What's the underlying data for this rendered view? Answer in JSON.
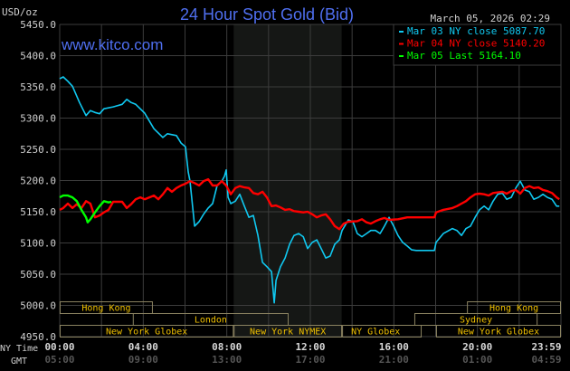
{
  "chart_data": {
    "type": "line",
    "title": "24 Hour Spot Gold (Bid)",
    "watermark": "www.kitco.com",
    "ylabel": "USD/oz",
    "timestamp": "March 05, 2026 02:29",
    "ylim": [
      4950,
      5450
    ],
    "yticks": [
      "5450.0",
      "5400.0",
      "5350.0",
      "5300.0",
      "5250.0",
      "5200.0",
      "5150.0",
      "5100.0",
      "5050.0",
      "5000.0",
      "4950.0"
    ],
    "ytick_values": [
      5450,
      5400,
      5350,
      5300,
      5250,
      5200,
      5150,
      5100,
      5050,
      5000,
      4950
    ],
    "xlim_hours": [
      0,
      24
    ],
    "xtick_hours": [
      0,
      4,
      8,
      12,
      16,
      20,
      23.98
    ],
    "xrow_labels": {
      "ny": "NY Time",
      "gmt": "GMT"
    },
    "xticks_ny": [
      "00:00",
      "04:00",
      "08:00",
      "12:00",
      "16:00",
      "20:00",
      "23:59"
    ],
    "xticks_gmt": [
      "05:00",
      "09:00",
      "13:00",
      "17:00",
      "21:00",
      "01:00",
      "04:59"
    ],
    "grid": true,
    "legend_placement": "top-right",
    "shaded_hours": [
      8.33,
      13.5
    ],
    "series": [
      {
        "name": "Mar 03 NY close 5087.70",
        "color": "#10c8f0",
        "points": [
          [
            0,
            5363
          ],
          [
            0.17,
            5366
          ],
          [
            0.39,
            5359
          ],
          [
            0.61,
            5351
          ],
          [
            0.95,
            5325
          ],
          [
            1.26,
            5304
          ],
          [
            1.47,
            5312
          ],
          [
            1.69,
            5309
          ],
          [
            1.91,
            5307
          ],
          [
            2.12,
            5315
          ],
          [
            2.56,
            5318
          ],
          [
            2.99,
            5322
          ],
          [
            3.21,
            5330
          ],
          [
            3.42,
            5325
          ],
          [
            3.64,
            5322
          ],
          [
            4.07,
            5308
          ],
          [
            4.51,
            5283
          ],
          [
            4.94,
            5269
          ],
          [
            5.16,
            5275
          ],
          [
            5.59,
            5272
          ],
          [
            5.81,
            5260
          ],
          [
            6.02,
            5254
          ],
          [
            6.15,
            5214
          ],
          [
            6.24,
            5199
          ],
          [
            6.46,
            5127
          ],
          [
            6.67,
            5134
          ],
          [
            6.89,
            5146
          ],
          [
            7.11,
            5156
          ],
          [
            7.32,
            5163
          ],
          [
            7.54,
            5192
          ],
          [
            7.76,
            5199
          ],
          [
            7.89,
            5207
          ],
          [
            7.97,
            5217
          ],
          [
            8.06,
            5173
          ],
          [
            8.19,
            5163
          ],
          [
            8.41,
            5167
          ],
          [
            8.62,
            5178
          ],
          [
            8.84,
            5159
          ],
          [
            9.06,
            5141
          ],
          [
            9.27,
            5144
          ],
          [
            9.49,
            5112
          ],
          [
            9.71,
            5069
          ],
          [
            9.92,
            5062
          ],
          [
            10.14,
            5054
          ],
          [
            10.27,
            5004
          ],
          [
            10.36,
            5040
          ],
          [
            10.57,
            5062
          ],
          [
            10.79,
            5076
          ],
          [
            11.01,
            5098
          ],
          [
            11.22,
            5112
          ],
          [
            11.44,
            5115
          ],
          [
            11.66,
            5110
          ],
          [
            11.87,
            5091
          ],
          [
            12.09,
            5101
          ],
          [
            12.31,
            5105
          ],
          [
            12.52,
            5091
          ],
          [
            12.74,
            5076
          ],
          [
            12.95,
            5079
          ],
          [
            13.17,
            5098
          ],
          [
            13.39,
            5105
          ],
          [
            13.52,
            5120
          ],
          [
            13.82,
            5137
          ],
          [
            14.04,
            5134
          ],
          [
            14.25,
            5115
          ],
          [
            14.47,
            5110
          ],
          [
            14.69,
            5115
          ],
          [
            14.9,
            5120
          ],
          [
            15.12,
            5120
          ],
          [
            15.34,
            5115
          ],
          [
            15.55,
            5127
          ],
          [
            15.77,
            5141
          ],
          [
            15.99,
            5127
          ],
          [
            16.2,
            5112
          ],
          [
            16.42,
            5101
          ],
          [
            16.64,
            5095
          ],
          [
            16.85,
            5089
          ],
          [
            17.07,
            5088
          ],
          [
            17.94,
            5088
          ],
          [
            18.02,
            5101
          ],
          [
            18.37,
            5115
          ],
          [
            18.8,
            5123
          ],
          [
            19.02,
            5120
          ],
          [
            19.24,
            5112
          ],
          [
            19.45,
            5123
          ],
          [
            19.67,
            5127
          ],
          [
            19.89,
            5141
          ],
          [
            20.1,
            5153
          ],
          [
            20.32,
            5159
          ],
          [
            20.54,
            5153
          ],
          [
            20.75,
            5167
          ],
          [
            20.97,
            5178
          ],
          [
            21.19,
            5180
          ],
          [
            21.4,
            5170
          ],
          [
            21.62,
            5173
          ],
          [
            21.84,
            5188
          ],
          [
            22.05,
            5199
          ],
          [
            22.27,
            5185
          ],
          [
            22.49,
            5182
          ],
          [
            22.7,
            5170
          ],
          [
            22.92,
            5173
          ],
          [
            23.14,
            5178
          ],
          [
            23.35,
            5173
          ],
          [
            23.57,
            5170
          ],
          [
            23.79,
            5159
          ],
          [
            23.92,
            5159
          ]
        ]
      },
      {
        "name": "Mar 04 NY close 5140.20",
        "color": "#ff0000",
        "points": [
          [
            0,
            5153
          ],
          [
            0.17,
            5156
          ],
          [
            0.39,
            5163
          ],
          [
            0.61,
            5156
          ],
          [
            0.82,
            5162
          ],
          [
            1.04,
            5156
          ],
          [
            1.26,
            5167
          ],
          [
            1.47,
            5163
          ],
          [
            1.69,
            5141
          ],
          [
            1.91,
            5144
          ],
          [
            2.12,
            5149
          ],
          [
            2.34,
            5153
          ],
          [
            2.56,
            5166
          ],
          [
            2.99,
            5166
          ],
          [
            3.21,
            5156
          ],
          [
            3.42,
            5162
          ],
          [
            3.64,
            5170
          ],
          [
            3.86,
            5173
          ],
          [
            4.07,
            5170
          ],
          [
            4.51,
            5176
          ],
          [
            4.72,
            5170
          ],
          [
            4.94,
            5178
          ],
          [
            5.16,
            5188
          ],
          [
            5.37,
            5182
          ],
          [
            5.59,
            5188
          ],
          [
            5.81,
            5192
          ],
          [
            6.02,
            5195
          ],
          [
            6.24,
            5199
          ],
          [
            6.46,
            5196
          ],
          [
            6.67,
            5192
          ],
          [
            6.89,
            5199
          ],
          [
            7.11,
            5202
          ],
          [
            7.32,
            5192
          ],
          [
            7.54,
            5192
          ],
          [
            7.76,
            5199
          ],
          [
            7.97,
            5192
          ],
          [
            8.19,
            5178
          ],
          [
            8.41,
            5188
          ],
          [
            8.62,
            5191
          ],
          [
            8.84,
            5189
          ],
          [
            9.06,
            5188
          ],
          [
            9.27,
            5180
          ],
          [
            9.49,
            5178
          ],
          [
            9.71,
            5182
          ],
          [
            9.92,
            5173
          ],
          [
            10.14,
            5159
          ],
          [
            10.36,
            5160
          ],
          [
            10.57,
            5157
          ],
          [
            10.79,
            5153
          ],
          [
            11.01,
            5154
          ],
          [
            11.22,
            5151
          ],
          [
            11.44,
            5150
          ],
          [
            11.66,
            5149
          ],
          [
            11.87,
            5150
          ],
          [
            12.09,
            5146
          ],
          [
            12.31,
            5141
          ],
          [
            12.52,
            5144
          ],
          [
            12.74,
            5146
          ],
          [
            12.95,
            5138
          ],
          [
            13.17,
            5127
          ],
          [
            13.39,
            5122
          ],
          [
            13.6,
            5131
          ],
          [
            13.82,
            5134
          ],
          [
            14.25,
            5135
          ],
          [
            14.47,
            5138
          ],
          [
            14.69,
            5133
          ],
          [
            14.9,
            5131
          ],
          [
            15.12,
            5135
          ],
          [
            15.34,
            5138
          ],
          [
            15.55,
            5140
          ],
          [
            15.77,
            5137
          ],
          [
            16.2,
            5138
          ],
          [
            16.64,
            5141
          ],
          [
            17.94,
            5141
          ],
          [
            18.02,
            5149
          ],
          [
            18.37,
            5153
          ],
          [
            18.8,
            5156
          ],
          [
            19.02,
            5159
          ],
          [
            19.24,
            5163
          ],
          [
            19.45,
            5167
          ],
          [
            19.67,
            5173
          ],
          [
            19.89,
            5178
          ],
          [
            20.1,
            5179
          ],
          [
            20.32,
            5178
          ],
          [
            20.54,
            5176
          ],
          [
            20.75,
            5180
          ],
          [
            21.19,
            5182
          ],
          [
            21.4,
            5179
          ],
          [
            21.62,
            5183
          ],
          [
            21.84,
            5185
          ],
          [
            22.05,
            5179
          ],
          [
            22.27,
            5188
          ],
          [
            22.49,
            5191
          ],
          [
            22.7,
            5188
          ],
          [
            22.92,
            5189
          ],
          [
            23.14,
            5185
          ],
          [
            23.35,
            5183
          ],
          [
            23.57,
            5180
          ],
          [
            23.79,
            5173
          ],
          [
            23.92,
            5170
          ]
        ]
      },
      {
        "name": "Mar 05 Last 5164.10",
        "color": "#00ff00",
        "points": [
          [
            0,
            5173
          ],
          [
            0.17,
            5176
          ],
          [
            0.39,
            5176
          ],
          [
            0.61,
            5173
          ],
          [
            0.82,
            5167
          ],
          [
            1.04,
            5153
          ],
          [
            1.26,
            5141
          ],
          [
            1.34,
            5133
          ],
          [
            1.47,
            5138
          ],
          [
            1.69,
            5149
          ],
          [
            1.91,
            5159
          ],
          [
            2.12,
            5167
          ],
          [
            2.34,
            5165
          ],
          [
            2.48,
            5166
          ]
        ]
      }
    ],
    "sessions": [
      {
        "label": "Hong Kong",
        "row": 0,
        "start": 0,
        "end": 4.46,
        "align": "center"
      },
      {
        "label": "Hong Kong",
        "row": 0,
        "start": 19.5,
        "end": 24,
        "align": "center"
      },
      {
        "label": "London",
        "row": 1,
        "start": 3.5,
        "end": 10.96,
        "align": "center"
      },
      {
        "label": "Sydney",
        "row": 1,
        "start": 16.98,
        "end": 22.88,
        "align": "center"
      },
      {
        "label": "New York Globex",
        "row": 2,
        "start": 0,
        "end": 8.33,
        "align": "center"
      },
      {
        "label": "New York NYMEX",
        "row": 2,
        "start": 8.33,
        "end": 13.52,
        "align": "center"
      },
      {
        "label": "NY Globex",
        "row": 2,
        "start": 13.52,
        "end": 17.33,
        "align": "left"
      },
      {
        "label": "New York Globex",
        "row": 2,
        "start": 18.02,
        "end": 24,
        "align": "center"
      }
    ]
  }
}
